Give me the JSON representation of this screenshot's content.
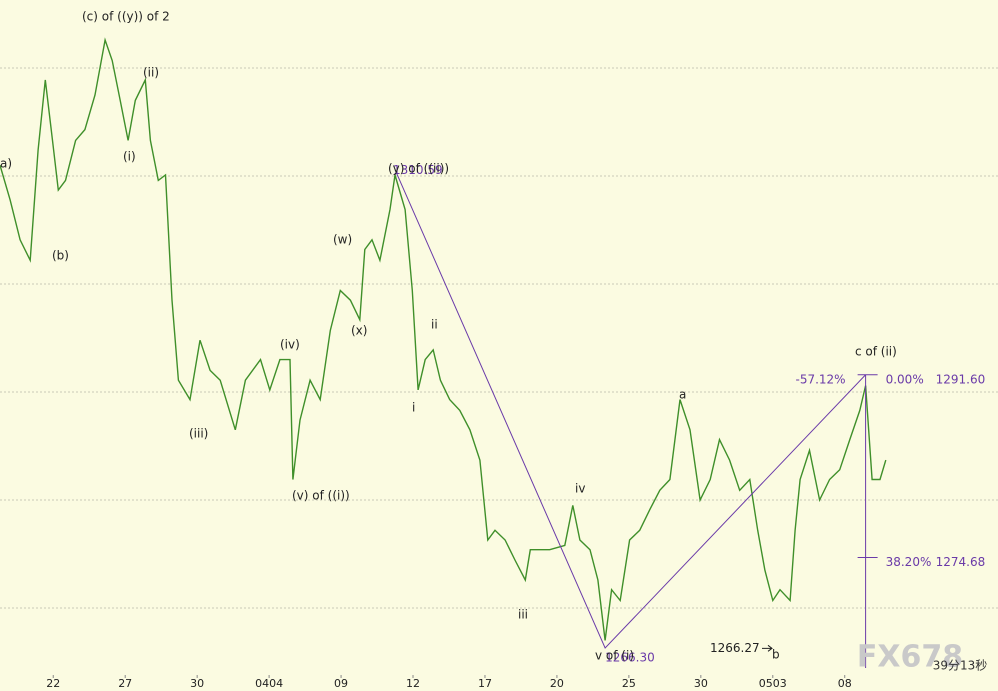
{
  "chart_data": {
    "type": "line",
    "xlim": [
      -0.74,
      13.13
    ],
    "ylim": [
      1263.8,
      1326.3
    ],
    "xticks": [
      {
        "value": 0,
        "label": "22"
      },
      {
        "value": 1,
        "label": "27"
      },
      {
        "value": 2,
        "label": "30"
      },
      {
        "value": 3,
        "label": "0404"
      },
      {
        "value": 4,
        "label": "09"
      },
      {
        "value": 5,
        "label": "12"
      },
      {
        "value": 6,
        "label": "17"
      },
      {
        "value": 7,
        "label": "20"
      },
      {
        "value": 8,
        "label": "25"
      },
      {
        "value": 9,
        "label": "30"
      },
      {
        "value": 10,
        "label": "0503"
      },
      {
        "value": 11,
        "label": "08"
      }
    ],
    "grid": true,
    "grid_levels": [
      1270,
      1280,
      1290,
      1300,
      1310,
      1320
    ],
    "series": [
      {
        "color": "#3f8f2a",
        "x": [
          -0.74,
          -0.6,
          -0.46,
          -0.32,
          -0.21,
          -0.11,
          -0.01,
          0.07,
          0.17,
          0.31,
          0.44,
          0.58,
          0.72,
          0.82,
          0.93,
          1.04,
          1.14,
          1.28,
          1.35,
          1.46,
          1.56,
          1.65,
          1.74,
          1.9,
          2.04,
          2.18,
          2.32,
          2.53,
          2.67,
          2.88,
          3.01,
          3.15,
          3.29,
          3.33,
          3.43,
          3.57,
          3.71,
          3.85,
          3.99,
          4.13,
          4.26,
          4.33,
          4.43,
          4.54,
          4.68,
          4.75,
          4.89,
          4.99,
          5.07,
          5.17,
          5.28,
          5.38,
          5.51,
          5.65,
          5.79,
          5.93,
          6.04,
          6.14,
          6.28,
          6.42,
          6.56,
          6.63,
          6.76,
          6.9,
          7.11,
          7.22,
          7.32,
          7.46,
          7.57,
          7.67,
          7.76,
          7.88,
          8.01,
          8.15,
          8.29,
          8.43,
          8.57,
          8.71,
          8.85,
          8.99,
          9.13,
          9.26,
          9.4,
          9.54,
          9.68,
          9.79,
          9.89,
          10.0,
          10.1,
          10.24,
          10.31,
          10.38,
          10.51,
          10.65,
          10.79,
          10.93,
          11.07,
          11.21,
          11.29,
          11.38,
          11.49,
          11.57
        ],
        "values": [
          1311.0,
          1307.8,
          1304.1,
          1302.2,
          1312.4,
          1318.9,
          1313.3,
          1308.7,
          1309.6,
          1313.3,
          1314.3,
          1317.5,
          1322.6,
          1320.7,
          1317.0,
          1313.3,
          1317.0,
          1318.9,
          1313.3,
          1309.6,
          1310.1,
          1298.5,
          1291.1,
          1289.3,
          1294.8,
          1292.0,
          1291.1,
          1286.5,
          1291.1,
          1293.0,
          1290.2,
          1293.0,
          1293.0,
          1281.9,
          1287.4,
          1291.1,
          1289.3,
          1295.7,
          1299.4,
          1298.5,
          1296.7,
          1303.2,
          1304.1,
          1302.2,
          1306.9,
          1310.1,
          1306.9,
          1299.4,
          1290.2,
          1293.0,
          1293.9,
          1291.1,
          1289.3,
          1288.3,
          1286.5,
          1283.7,
          1276.3,
          1277.2,
          1276.3,
          1274.4,
          1272.6,
          1275.4,
          1275.4,
          1275.4,
          1275.8,
          1279.5,
          1276.3,
          1275.4,
          1272.6,
          1267.0,
          1271.7,
          1270.7,
          1276.3,
          1277.2,
          1279.1,
          1280.9,
          1281.9,
          1289.3,
          1286.5,
          1280.0,
          1281.9,
          1285.6,
          1283.7,
          1280.9,
          1281.9,
          1277.2,
          1273.5,
          1270.7,
          1271.7,
          1270.7,
          1277.2,
          1281.9,
          1284.6,
          1280.0,
          1281.9,
          1282.8,
          1285.6,
          1288.3,
          1290.6,
          1281.9,
          1281.9,
          1283.7
        ]
      }
    ],
    "trendline": {
      "x": [
        4.75,
        7.67,
        11.29
      ],
      "values": [
        1310.59,
        1266.3,
        1291.6
      ],
      "value_labels": [
        "1310.59",
        "1266.30",
        "1291.60"
      ],
      "color": "#6a3aa8"
    },
    "fib_levels": [
      {
        "ratio": "0.00%",
        "price": 1291.6,
        "price_label": "1291.60"
      },
      {
        "ratio": "38.20%",
        "price": 1274.68
      }
    ],
    "fib_extension": "-57.12%",
    "low_label": {
      "text": "1266.27",
      "price": 1266.27
    },
    "annotations": [
      "(c) of ((y)) of 2",
      "a)",
      "(ii)",
      "(i)",
      "(b)",
      "(y) of ((ii))",
      "(w)",
      "(x)",
      "(iv)",
      "(iii)",
      "(v) of ((i))",
      "ii",
      "i",
      "iv",
      "iii",
      "a",
      "v of (i)",
      "b",
      "c of (ii)"
    ],
    "watermark": "FX678",
    "timer": "39分13秒"
  }
}
